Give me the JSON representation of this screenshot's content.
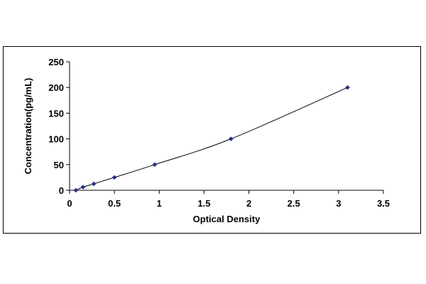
{
  "chart_data": {
    "type": "scatter",
    "title": "",
    "xlabel": "Optical Density",
    "ylabel": "Concentration(pg/mL)",
    "xlim": [
      0,
      3.5
    ],
    "ylim": [
      0,
      250
    ],
    "xticks": [
      0,
      0.5,
      1,
      1.5,
      2,
      2.5,
      3,
      3.5
    ],
    "xtick_labels": [
      "0",
      "0.5",
      "1",
      "1.5",
      "2",
      "2.5",
      "3",
      "3.5"
    ],
    "yticks": [
      0,
      50,
      100,
      150,
      200,
      250
    ],
    "ytick_labels": [
      "0",
      "50",
      "100",
      "150",
      "200",
      "250"
    ],
    "grid": false,
    "legend": "none",
    "trendline": "smooth curve through points",
    "series": [
      {
        "marker": "diamond",
        "color": "#1f2d8a",
        "line_color": "#000000",
        "points": [
          {
            "x": 0.07,
            "y": 0
          },
          {
            "x": 0.15,
            "y": 6.25
          },
          {
            "x": 0.27,
            "y": 12.5
          },
          {
            "x": 0.5,
            "y": 25
          },
          {
            "x": 0.95,
            "y": 50
          },
          {
            "x": 1.8,
            "y": 100
          },
          {
            "x": 3.1,
            "y": 200
          }
        ]
      }
    ]
  }
}
